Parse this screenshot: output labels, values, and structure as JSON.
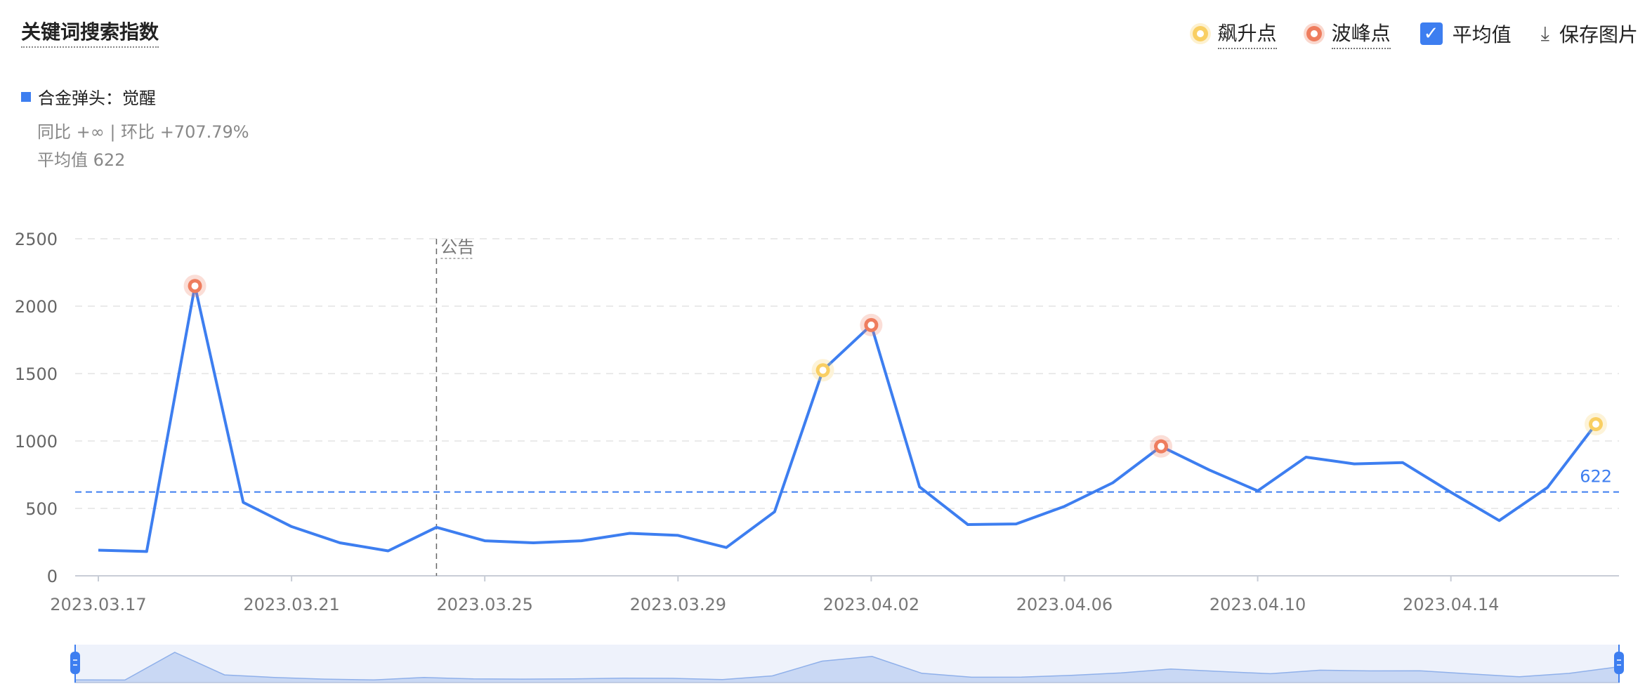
{
  "header": {
    "title": "关键词搜索指数",
    "tools": {
      "rise_label": "飙升点",
      "peak_label": "波峰点",
      "avg_label": "平均值",
      "save_label": "保存图片"
    }
  },
  "legend": {
    "series_name": "合金弹头：觉醒",
    "yoy_text": "同比 +∞ | 环比 +707.79%",
    "avg_text": "平均值 622"
  },
  "colors": {
    "line": "#3d7ef0",
    "rise": "#f9cf63",
    "peak": "#ee7d5e",
    "grid": "#e3e3e3",
    "axis": "#999999"
  },
  "chart_data": {
    "type": "line",
    "x": [
      "2023.03.17",
      "2023.03.18",
      "2023.03.19",
      "2023.03.20",
      "2023.03.21",
      "2023.03.22",
      "2023.03.23",
      "2023.03.24",
      "2023.03.25",
      "2023.03.26",
      "2023.03.27",
      "2023.03.28",
      "2023.03.29",
      "2023.03.30",
      "2023.03.31",
      "2023.04.01",
      "2023.04.02",
      "2023.04.03",
      "2023.04.04",
      "2023.04.05",
      "2023.04.06",
      "2023.04.07",
      "2023.04.08",
      "2023.04.09",
      "2023.04.10",
      "2023.04.11",
      "2023.04.12",
      "2023.04.13",
      "2023.04.14",
      "2023.04.15",
      "2023.04.16",
      "2023.04.17"
    ],
    "series": [
      {
        "name": "合金弹头：觉醒",
        "values": [
          190,
          180,
          2150,
          545,
          365,
          245,
          185,
          360,
          260,
          245,
          260,
          315,
          300,
          210,
          475,
          1525,
          1860,
          660,
          380,
          385,
          515,
          690,
          960,
          785,
          630,
          880,
          830,
          840,
          620,
          410,
          655,
          1125
        ]
      }
    ],
    "x_tick_labels": [
      "2023.03.17",
      "2023.03.21",
      "2023.03.25",
      "2023.03.29",
      "2023.04.02",
      "2023.04.06",
      "2023.04.10",
      "2023.04.14"
    ],
    "y_ticks": [
      0,
      500,
      1000,
      1500,
      2000,
      2500
    ],
    "ylim": [
      0,
      2500
    ],
    "average": 622,
    "average_label": "622",
    "rise_points": [
      "2023.04.01",
      "2023.04.17"
    ],
    "peak_points": [
      "2023.03.19",
      "2023.04.02",
      "2023.04.08"
    ],
    "annotation": {
      "x": "2023.03.24",
      "text": "公告"
    },
    "grid": true
  }
}
